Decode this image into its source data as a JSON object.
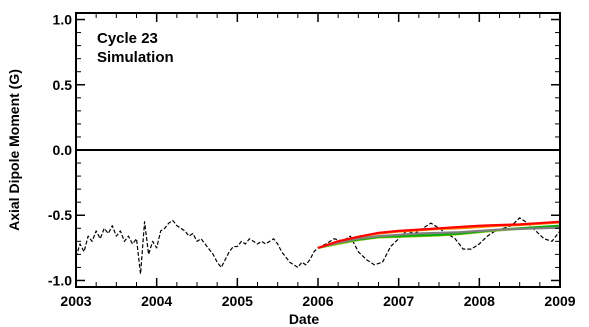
{
  "chart_data": {
    "type": "line",
    "title": "",
    "xlabel": "Date",
    "ylabel": "Axial Dipole Moment (G)",
    "xlim": [
      2003,
      2009
    ],
    "ylim": [
      -1.05,
      1.05
    ],
    "x_ticks": [
      2003,
      2004,
      2005,
      2006,
      2007,
      2008,
      2009
    ],
    "x_tick_labels": [
      "2003",
      "2004",
      "2005",
      "2006",
      "2007",
      "2008",
      "2009"
    ],
    "y_ticks": [
      -1.0,
      -0.5,
      0.0,
      0.5,
      1.0
    ],
    "y_tick_labels": [
      "-1.0",
      "-0.5",
      "0.0",
      "0.5",
      "1.0"
    ],
    "annotations": [
      "Cycle 23",
      "Simulation"
    ],
    "reference_line": {
      "y": 0.0,
      "color": "#000000"
    },
    "series": [
      {
        "style": "dashed",
        "color": "#000000",
        "x": [
          2003.0,
          2003.05,
          2003.1,
          2003.15,
          2003.2,
          2003.25,
          2003.3,
          2003.35,
          2003.4,
          2003.45,
          2003.5,
          2003.55,
          2003.6,
          2003.65,
          2003.7,
          2003.75,
          2003.8,
          2003.85,
          2003.9,
          2003.95,
          2004.0,
          2004.05,
          2004.1,
          2004.15,
          2004.2,
          2004.25,
          2004.3,
          2004.35,
          2004.4,
          2004.45,
          2004.5,
          2004.55,
          2004.6,
          2004.65,
          2004.7,
          2004.75,
          2004.8,
          2004.85,
          2004.9,
          2004.95,
          2005.0,
          2005.05,
          2005.1,
          2005.15,
          2005.2,
          2005.25,
          2005.3,
          2005.35,
          2005.4,
          2005.45,
          2005.5,
          2005.55,
          2005.6,
          2005.65,
          2005.7,
          2005.75,
          2005.8,
          2005.85,
          2005.9,
          2005.95,
          2006.0,
          2006.1,
          2006.2,
          2006.3,
          2006.4,
          2006.5,
          2006.6,
          2006.7,
          2006.8,
          2006.9,
          2007.0,
          2007.1,
          2007.2,
          2007.3,
          2007.4,
          2007.5,
          2007.6,
          2007.7,
          2007.8,
          2007.9,
          2008.0,
          2008.1,
          2008.2,
          2008.3,
          2008.4,
          2008.5,
          2008.6,
          2008.7,
          2008.8,
          2008.9,
          2009.0
        ],
        "y": [
          -0.82,
          -0.72,
          -0.78,
          -0.66,
          -0.7,
          -0.62,
          -0.68,
          -0.6,
          -0.64,
          -0.58,
          -0.66,
          -0.62,
          -0.7,
          -0.66,
          -0.72,
          -0.68,
          -0.95,
          -0.55,
          -0.8,
          -0.7,
          -0.75,
          -0.62,
          -0.6,
          -0.56,
          -0.54,
          -0.58,
          -0.6,
          -0.62,
          -0.66,
          -0.64,
          -0.7,
          -0.68,
          -0.72,
          -0.76,
          -0.8,
          -0.86,
          -0.9,
          -0.84,
          -0.78,
          -0.74,
          -0.74,
          -0.7,
          -0.72,
          -0.68,
          -0.7,
          -0.72,
          -0.7,
          -0.72,
          -0.7,
          -0.68,
          -0.72,
          -0.78,
          -0.82,
          -0.86,
          -0.88,
          -0.9,
          -0.86,
          -0.88,
          -0.84,
          -0.78,
          -0.75,
          -0.72,
          -0.68,
          -0.7,
          -0.66,
          -0.78,
          -0.84,
          -0.88,
          -0.86,
          -0.74,
          -0.68,
          -0.62,
          -0.64,
          -0.6,
          -0.56,
          -0.6,
          -0.64,
          -0.68,
          -0.76,
          -0.76,
          -0.72,
          -0.66,
          -0.62,
          -0.6,
          -0.58,
          -0.52,
          -0.56,
          -0.62,
          -0.68,
          -0.7,
          -0.62
        ]
      },
      {
        "style": "solid",
        "color": "#90c010",
        "x": [
          2006.0,
          2006.25,
          2006.5,
          2006.75,
          2007.0,
          2007.25,
          2007.5,
          2007.75,
          2008.0,
          2008.25,
          2008.5,
          2008.75,
          2009.0
        ],
        "y": [
          -0.75,
          -0.72,
          -0.69,
          -0.67,
          -0.665,
          -0.66,
          -0.655,
          -0.645,
          -0.63,
          -0.615,
          -0.605,
          -0.595,
          -0.585
        ]
      },
      {
        "style": "solid",
        "color": "#00b000",
        "x": [
          2006.0,
          2006.25,
          2006.5,
          2006.75,
          2007.0,
          2007.25,
          2007.5,
          2007.75,
          2008.0,
          2008.25,
          2008.5,
          2008.75,
          2009.0
        ],
        "y": [
          -0.75,
          -0.71,
          -0.685,
          -0.665,
          -0.66,
          -0.655,
          -0.65,
          -0.64,
          -0.625,
          -0.61,
          -0.6,
          -0.59,
          -0.58
        ]
      },
      {
        "style": "solid",
        "color": "#808080",
        "x": [
          2006.0,
          2006.25,
          2006.5,
          2006.75,
          2007.0,
          2007.25,
          2007.5,
          2007.75,
          2008.0,
          2008.25,
          2008.5,
          2008.75,
          2009.0
        ],
        "y": [
          -0.75,
          -0.71,
          -0.68,
          -0.66,
          -0.65,
          -0.64,
          -0.635,
          -0.63,
          -0.62,
          -0.61,
          -0.605,
          -0.6,
          -0.595
        ]
      },
      {
        "style": "solid",
        "color": "#ff8000",
        "x": [
          2006.0,
          2006.25,
          2006.5,
          2006.75,
          2007.0,
          2007.25,
          2007.5,
          2007.75,
          2008.0,
          2008.25,
          2008.5,
          2008.75,
          2009.0
        ],
        "y": [
          -0.75,
          -0.7,
          -0.665,
          -0.64,
          -0.625,
          -0.615,
          -0.605,
          -0.6,
          -0.59,
          -0.58,
          -0.575,
          -0.565,
          -0.555
        ]
      },
      {
        "style": "solid",
        "color": "#ff0000",
        "x": [
          2006.0,
          2006.25,
          2006.5,
          2006.75,
          2007.0,
          2007.25,
          2007.5,
          2007.75,
          2008.0,
          2008.25,
          2008.5,
          2008.75,
          2009.0
        ],
        "y": [
          -0.75,
          -0.7,
          -0.665,
          -0.635,
          -0.62,
          -0.61,
          -0.6,
          -0.59,
          -0.58,
          -0.575,
          -0.57,
          -0.56,
          -0.55
        ]
      }
    ]
  }
}
